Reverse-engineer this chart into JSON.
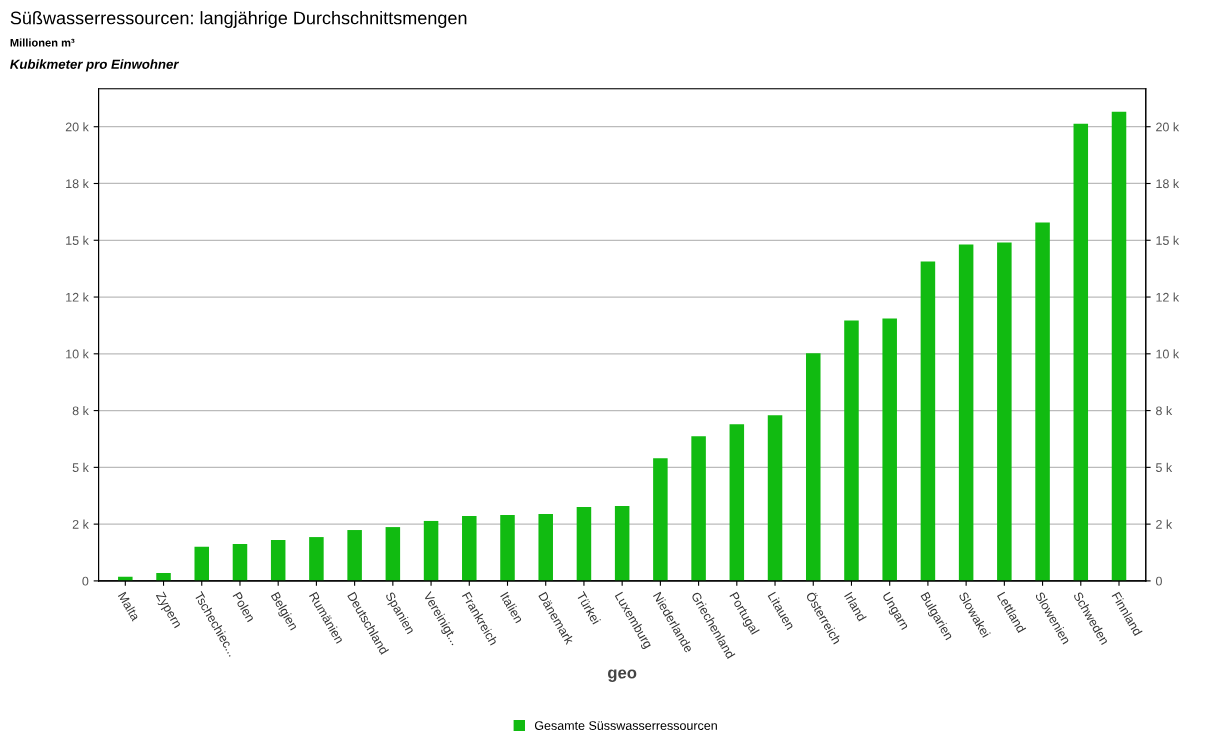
{
  "chart_data": {
    "type": "bar",
    "title": "Süßwasserressourcen: langjährige Durchschnittsmengen",
    "subtitle": "Millionen m³",
    "annotations": [
      "Kubikmeter pro Einwohner"
    ],
    "xlabel": "geo",
    "categories": [
      "Malta",
      "Zypern",
      "Tschechiec...",
      "Polen",
      "Belgien",
      "Rumänien",
      "Deutschland",
      "Spanien",
      "Vereinigt...",
      "Frankreich",
      "Italien",
      "Dänemark",
      "Türkei",
      "Luxemburg",
      "Niederlande",
      "Griechenland",
      "Portugal",
      "Litauen",
      "Österreich",
      "Irland",
      "Ungarn",
      "Bulgarien",
      "Slowakei",
      "Lettland",
      "Slowenien",
      "Schweden",
      "Finnland"
    ],
    "series": [
      {
        "name": "Gesamte Süsswasserressourcen",
        "color": "#11bb11",
        "values": [
          180,
          350,
          1500,
          1630,
          1800,
          1930,
          2240,
          2370,
          2640,
          2860,
          2900,
          2950,
          3250,
          3300,
          5400,
          6370,
          6900,
          7300,
          10020,
          11470,
          11560,
          14070,
          14810,
          14900,
          15780,
          20130,
          20660
        ]
      }
    ],
    "ylim": [
      0,
      21670
    ],
    "yticks": [
      0,
      {
        "value": 2500,
        "label": "2 k"
      },
      {
        "value": 5000,
        "label": "5 k"
      },
      {
        "value": 7500,
        "label": "8 k"
      },
      {
        "value": 10000,
        "label": "10 k"
      },
      {
        "value": 12500,
        "label": "12 k"
      },
      {
        "value": 15000,
        "label": "15 k"
      },
      {
        "value": 17500,
        "label": "18 k"
      },
      {
        "value": 20000,
        "label": "20 k"
      }
    ],
    "y2lim": [
      0,
      21670
    ],
    "y2ticks": [
      0,
      {
        "value": 2500,
        "label": "2 k"
      },
      {
        "value": 5000,
        "label": "5 k"
      },
      {
        "value": 7500,
        "label": "8 k"
      },
      {
        "value": 10000,
        "label": "10 k"
      },
      {
        "value": 12500,
        "label": "12 k"
      },
      {
        "value": 15000,
        "label": "15 k"
      },
      {
        "value": 17500,
        "label": "18 k"
      },
      {
        "value": 20000,
        "label": "20 k"
      }
    ],
    "grid": "y",
    "legend": "bottom"
  }
}
